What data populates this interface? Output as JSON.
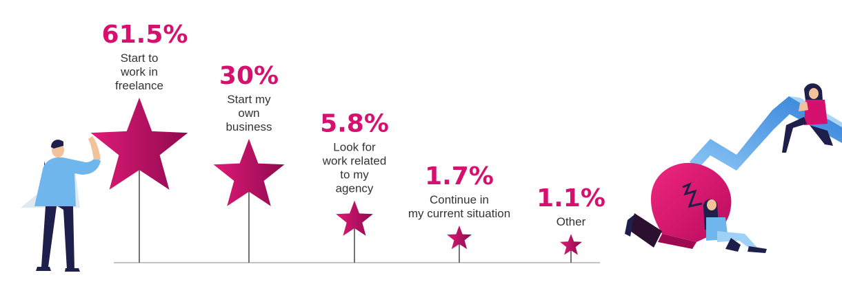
{
  "chart_data": {
    "type": "bar",
    "style": "star-lollipop",
    "title": "",
    "xlabel": "",
    "ylabel": "",
    "ylim": [
      0,
      65
    ],
    "unit": "%",
    "categories": [
      "Start to work in freelance",
      "Start my own business",
      "Look for work related to my agency",
      "Continue in my current situation",
      "Other"
    ],
    "category_lines": [
      [
        "Start to",
        "work in",
        "freelance"
      ],
      [
        "Start my",
        "own",
        "business"
      ],
      [
        "Look for",
        "work related",
        "to my",
        "agency"
      ],
      [
        "Continue in",
        "my current situation"
      ],
      [
        "Other"
      ]
    ],
    "values": [
      61.5,
      30,
      5.8,
      1.7,
      1.1
    ],
    "value_labels": [
      "61.5%",
      "30%",
      "5.8%",
      "1.7%",
      "1.1%"
    ],
    "grid": false,
    "legend": "none"
  },
  "colors": {
    "accent": "#d6106f",
    "accent_dark": "#8e0a4f",
    "text": "#333333",
    "baseline": "#b0b0b0",
    "stem": "#444444",
    "shirt": "#6fb6ec",
    "arrow": "#3d8fe0",
    "navy": "#1e1f4a"
  },
  "decorations": [
    "man-holding-star-illustration",
    "lightbulb-illustration",
    "sitting-woman-illustration",
    "rising-arrow-illustration",
    "woman-on-arrow-illustration"
  ]
}
